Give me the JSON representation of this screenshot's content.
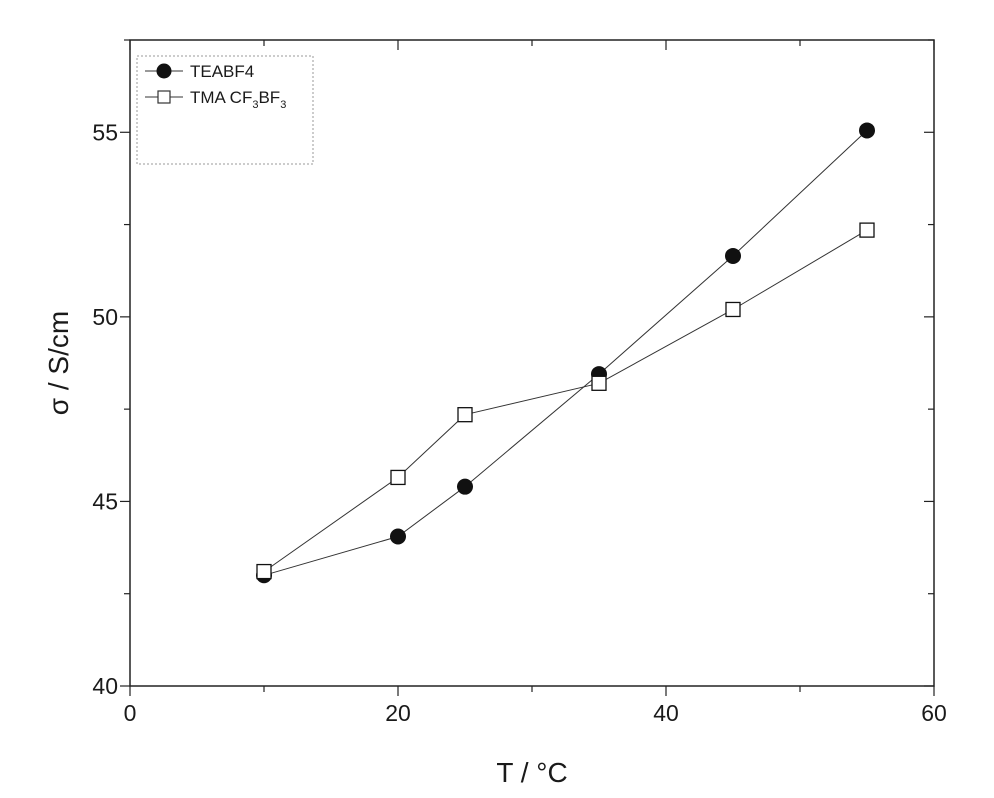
{
  "chart_data": {
    "type": "line",
    "xlabel": "T / °C",
    "ylabel": "σ / S/cm",
    "xlim": [
      0,
      60
    ],
    "ylim": [
      40,
      57.5
    ],
    "xticks": [
      0,
      20,
      40,
      60
    ],
    "yticks": [
      40,
      45,
      50,
      55
    ],
    "xtick_labels": [
      "0",
      "20",
      "40",
      "60"
    ],
    "ytick_labels": [
      "40",
      "45",
      "50",
      "55"
    ],
    "grid": false,
    "legend_position": "top-left",
    "series": [
      {
        "name": "TEABF4",
        "marker": "filled-circle",
        "color": "#111111",
        "x": [
          10,
          20,
          25,
          35,
          45,
          55
        ],
        "y": [
          43.0,
          44.05,
          45.4,
          48.45,
          51.65,
          55.05
        ]
      },
      {
        "name": "TMA CF3BF3",
        "legend_label": {
          "base": "TMA CF",
          "sub1": "3",
          "mid": "BF",
          "sub2": "3"
        },
        "marker": "open-square",
        "color": "#111111",
        "x": [
          10,
          20,
          25,
          35,
          45,
          55
        ],
        "y": [
          43.1,
          45.65,
          47.35,
          48.2,
          50.2,
          52.35
        ]
      }
    ]
  }
}
